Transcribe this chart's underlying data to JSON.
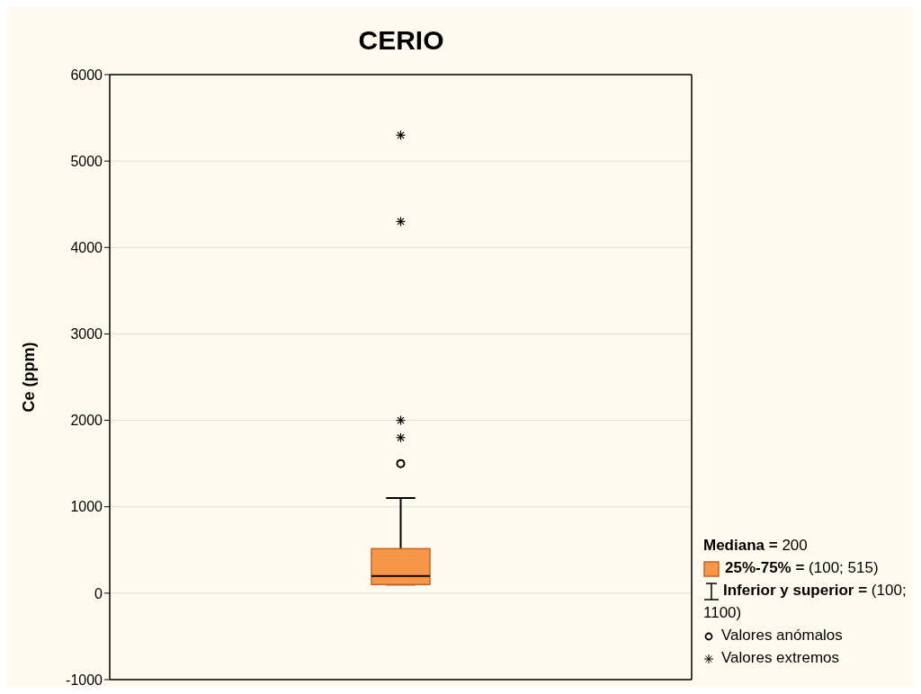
{
  "chart_data": {
    "type": "box",
    "title": "CERIO",
    "ylabel": "Ce (ppm)",
    "categories": [
      null
    ],
    "ylim": [
      -1000,
      6000
    ],
    "yticks": [
      -1000,
      0,
      1000,
      2000,
      3000,
      4000,
      5000,
      6000
    ],
    "grid": "y",
    "series": [
      {
        "type": "box",
        "color": "#f79646",
        "boxes": [
          {
            "low": 100,
            "q1": 100,
            "median": 200,
            "q3": 515,
            "high": 1100,
            "outliers": [
              1500
            ]
          }
        ]
      },
      {
        "type": "scatter",
        "marker": "cross",
        "color": "#000000",
        "x": [
          null,
          null,
          null,
          null
        ],
        "values": [
          1800,
          2000,
          4300,
          5300
        ]
      }
    ],
    "annotations": [
      "Mediana = 200",
      "25%-75% = (100; 515)",
      "Inferior y superior = (100; 1100)",
      "Valores anómalos",
      "Valores extremos"
    ]
  }
}
